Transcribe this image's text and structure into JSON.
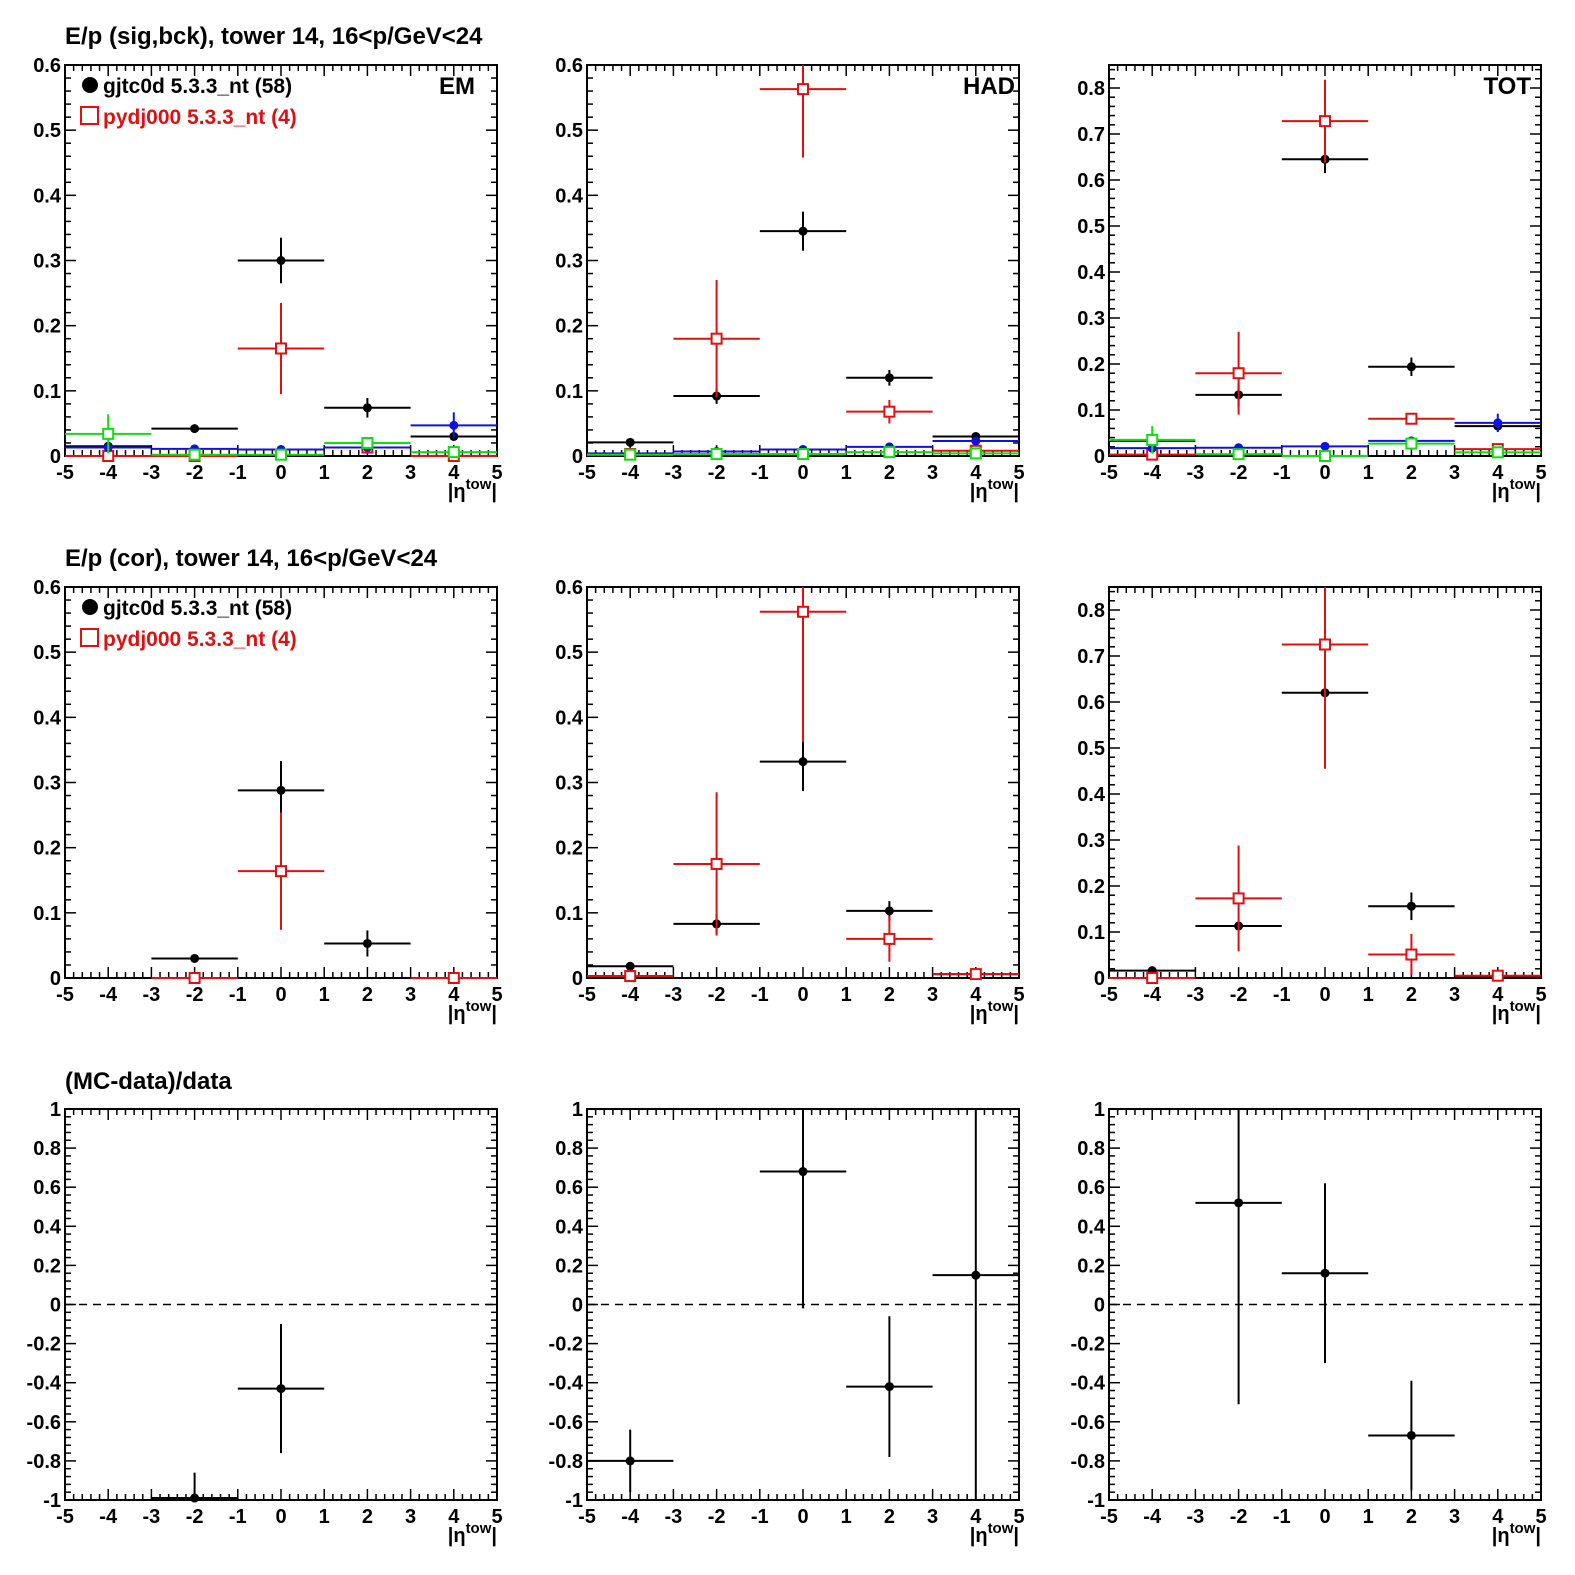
{
  "rows": [
    {
      "title": "E/p (sig,bck), tower 14, 16<p/GeV<24"
    },
    {
      "title": "E/p (cor), tower 14, 16<p/GeV<24"
    },
    {
      "title": "(MC-data)/data"
    }
  ],
  "legend": {
    "data_label": "gjtc0d 5.3.3_nt (58)",
    "mc_label": "pydj000 5.3.3_nt (4)"
  },
  "panel_labels": [
    "EM",
    "HAD",
    "TOT"
  ],
  "x_axis": {
    "label_main": "|η",
    "label_sup": "tow",
    "label_end": "|"
  },
  "colors": {
    "data": "#000000",
    "mc": "#e01010",
    "bck_data": "#1010e0",
    "bck_mc": "#10dd10"
  },
  "chart_data": [
    {
      "type": "scatter",
      "row": 0,
      "col": 0,
      "label": "EM",
      "xlim": [
        -5,
        5
      ],
      "ylim": [
        0,
        0.6
      ],
      "yticks": [
        0,
        0.1,
        0.2,
        0.3,
        0.4,
        0.5,
        0.6
      ],
      "series": [
        {
          "name": "gjtc0d 5.3.3_nt (58)",
          "color": "#000000",
          "marker": "dot",
          "points": [
            [
              -4,
              0.015,
              0
            ],
            [
              -2,
              0.042,
              0
            ],
            [
              0,
              0.3,
              0.035
            ],
            [
              2,
              0.074,
              0.015
            ],
            [
              4,
              0.03,
              0
            ]
          ]
        },
        {
          "name": "pydj000 5.3.3_nt (4)",
          "color": "#e01010",
          "marker": "square",
          "points": [
            [
              -4,
              0.0,
              0
            ],
            [
              -2,
              0.0,
              0
            ],
            [
              0,
              0.165,
              0.07
            ],
            [
              2,
              0.013,
              0
            ],
            [
              4,
              0.0,
              0
            ]
          ]
        },
        {
          "color": "#1010e0",
          "marker": "dot",
          "points": [
            [
              -4,
              0.013,
              0
            ],
            [
              -2,
              0.011,
              0
            ],
            [
              0,
              0.01,
              0
            ],
            [
              2,
              0.013,
              0
            ],
            [
              4,
              0.047,
              0.02
            ]
          ]
        },
        {
          "color": "#10dd10",
          "marker": "square",
          "points": [
            [
              -4,
              0.034,
              0.03
            ],
            [
              -2,
              0.002,
              0
            ],
            [
              0,
              0.002,
              0
            ],
            [
              2,
              0.02,
              0
            ],
            [
              4,
              0.006,
              0
            ]
          ]
        }
      ]
    },
    {
      "type": "scatter",
      "row": 0,
      "col": 1,
      "label": "HAD",
      "xlim": [
        -5,
        5
      ],
      "ylim": [
        0,
        0.6
      ],
      "yticks": [
        0,
        0.1,
        0.2,
        0.3,
        0.4,
        0.5,
        0.6
      ],
      "series": [
        {
          "name": "gjtc0d 5.3.3_nt (58)",
          "color": "#000000",
          "marker": "dot",
          "points": [
            [
              -4,
              0.021,
              0
            ],
            [
              -2,
              0.092,
              0.012
            ],
            [
              0,
              0.345,
              0.03
            ],
            [
              2,
              0.12,
              0.012
            ],
            [
              4,
              0.03,
              0
            ]
          ]
        },
        {
          "name": "pydj000 5.3.3_nt (4)",
          "color": "#e01010",
          "marker": "square",
          "points": [
            [
              -4,
              0.003,
              0
            ],
            [
              -2,
              0.18,
              0.09
            ],
            [
              0,
              0.563,
              0.105
            ],
            [
              2,
              0.068,
              0.018
            ],
            [
              4,
              0.008,
              0
            ]
          ]
        },
        {
          "color": "#1010e0",
          "marker": "dot",
          "points": [
            [
              -4,
              0.004,
              0
            ],
            [
              -2,
              0.007,
              0
            ],
            [
              0,
              0.01,
              0
            ],
            [
              2,
              0.014,
              0
            ],
            [
              4,
              0.023,
              0
            ]
          ]
        },
        {
          "color": "#10dd10",
          "marker": "square",
          "points": [
            [
              -4,
              0.002,
              0
            ],
            [
              -2,
              0.003,
              0
            ],
            [
              0,
              0.003,
              0
            ],
            [
              2,
              0.006,
              0
            ],
            [
              4,
              0.004,
              0
            ]
          ]
        }
      ]
    },
    {
      "type": "scatter",
      "row": 0,
      "col": 2,
      "label": "TOT",
      "xlim": [
        -5,
        5
      ],
      "ylim": [
        0,
        0.85
      ],
      "yticks": [
        0,
        0.1,
        0.2,
        0.3,
        0.4,
        0.5,
        0.6,
        0.7,
        0.8
      ],
      "series": [
        {
          "name": "gjtc0d 5.3.3_nt (58)",
          "color": "#000000",
          "marker": "dot",
          "points": [
            [
              -4,
              0.033,
              0
            ],
            [
              -2,
              0.133,
              0.025
            ],
            [
              0,
              0.645,
              0.03
            ],
            [
              2,
              0.194,
              0.02
            ],
            [
              4,
              0.065,
              0
            ]
          ]
        },
        {
          "name": "pydj000 5.3.3_nt (4)",
          "color": "#e01010",
          "marker": "square",
          "points": [
            [
              -4,
              0.003,
              0
            ],
            [
              -2,
              0.18,
              0.09
            ],
            [
              0,
              0.728,
              0.09
            ],
            [
              2,
              0.081,
              0
            ],
            [
              4,
              0.015,
              0
            ]
          ]
        },
        {
          "color": "#1010e0",
          "marker": "dot",
          "points": [
            [
              -4,
              0.017,
              0
            ],
            [
              -2,
              0.018,
              0
            ],
            [
              0,
              0.021,
              0
            ],
            [
              2,
              0.033,
              0
            ],
            [
              4,
              0.072,
              0.02
            ]
          ]
        },
        {
          "color": "#10dd10",
          "marker": "square",
          "points": [
            [
              -4,
              0.035,
              0.03
            ],
            [
              -2,
              0.004,
              0
            ],
            [
              0,
              0.0,
              0
            ],
            [
              2,
              0.027,
              0
            ],
            [
              4,
              0.008,
              0
            ]
          ]
        }
      ]
    },
    {
      "type": "scatter",
      "row": 1,
      "col": 0,
      "xlim": [
        -5,
        5
      ],
      "ylim": [
        0,
        0.6
      ],
      "yticks": [
        0,
        0.1,
        0.2,
        0.3,
        0.4,
        0.5,
        0.6
      ],
      "series": [
        {
          "name": "gjtc0d 5.3.3_nt (58)",
          "color": "#000000",
          "marker": "dot",
          "points": [
            [
              -2,
              0.03,
              0
            ],
            [
              0,
              0.288,
              0.045
            ],
            [
              2,
              0.053,
              0.02
            ]
          ]
        },
        {
          "name": "pydj000 5.3.3_nt (4)",
          "color": "#e01010",
          "marker": "square",
          "points": [
            [
              -2,
              0.0,
              0
            ],
            [
              0,
              0.164,
              0.09
            ],
            [
              4,
              0.0,
              0
            ]
          ]
        }
      ]
    },
    {
      "type": "scatter",
      "row": 1,
      "col": 1,
      "xlim": [
        -5,
        5
      ],
      "ylim": [
        0,
        0.6
      ],
      "yticks": [
        0,
        0.1,
        0.2,
        0.3,
        0.4,
        0.5,
        0.6
      ],
      "series": [
        {
          "name": "gjtc0d 5.3.3_nt (58)",
          "color": "#000000",
          "marker": "dot",
          "points": [
            [
              -4,
              0.018,
              0
            ],
            [
              -2,
              0.083,
              0.015
            ],
            [
              0,
              0.332,
              0.045
            ],
            [
              2,
              0.103,
              0.015
            ],
            [
              4,
              0.006,
              0
            ]
          ]
        },
        {
          "name": "pydj000 5.3.3_nt (4)",
          "color": "#e01010",
          "marker": "square",
          "points": [
            [
              -4,
              0.003,
              0
            ],
            [
              -2,
              0.175,
              0.11
            ],
            [
              0,
              0.562,
              0.2
            ],
            [
              2,
              0.06,
              0.035
            ],
            [
              4,
              0.006,
              0
            ]
          ]
        }
      ]
    },
    {
      "type": "scatter",
      "row": 1,
      "col": 2,
      "xlim": [
        -5,
        5
      ],
      "ylim": [
        0,
        0.85
      ],
      "yticks": [
        0,
        0.1,
        0.2,
        0.3,
        0.4,
        0.5,
        0.6,
        0.7,
        0.8
      ],
      "series": [
        {
          "name": "gjtc0d 5.3.3_nt (58)",
          "color": "#000000",
          "marker": "dot",
          "points": [
            [
              -4,
              0.016,
              0
            ],
            [
              -2,
              0.113,
              0
            ],
            [
              0,
              0.62,
              0.04
            ],
            [
              2,
              0.156,
              0.03
            ],
            [
              4,
              0.004,
              0
            ]
          ]
        },
        {
          "name": "pydj000 5.3.3_nt (4)",
          "color": "#e01010",
          "marker": "square",
          "points": [
            [
              -4,
              0.0,
              0
            ],
            [
              -2,
              0.173,
              0.115
            ],
            [
              0,
              0.725,
              0.27
            ],
            [
              2,
              0.051,
              0.045
            ],
            [
              4,
              0.005,
              0
            ]
          ]
        }
      ]
    },
    {
      "type": "scatter",
      "row": 2,
      "col": 0,
      "xlim": [
        -5,
        5
      ],
      "ylim": [
        -1,
        1
      ],
      "yticks": [
        -1,
        -0.8,
        -0.6,
        -0.4,
        -0.2,
        0,
        0.2,
        0.4,
        0.6,
        0.8,
        1
      ],
      "dashed_zero": true,
      "series": [
        {
          "color": "#000000",
          "marker": "dot",
          "points": [
            [
              -2,
              -0.99,
              0.13
            ],
            [
              0,
              -0.43,
              0.33
            ]
          ]
        }
      ]
    },
    {
      "type": "scatter",
      "row": 2,
      "col": 1,
      "xlim": [
        -5,
        5
      ],
      "ylim": [
        -1,
        1
      ],
      "yticks": [
        -1,
        -0.8,
        -0.6,
        -0.4,
        -0.2,
        0,
        0.2,
        0.4,
        0.6,
        0.8,
        1
      ],
      "dashed_zero": true,
      "series": [
        {
          "color": "#000000",
          "marker": "dot",
          "points": [
            [
              -4,
              -0.8,
              0.16
            ],
            [
              0,
              0.68,
              0.7
            ],
            [
              2,
              -0.42,
              0.36
            ],
            [
              4,
              0.15,
              1.15
            ]
          ]
        }
      ]
    },
    {
      "type": "scatter",
      "row": 2,
      "col": 2,
      "xlim": [
        -5,
        5
      ],
      "ylim": [
        -1,
        1
      ],
      "yticks": [
        -1,
        -0.8,
        -0.6,
        -0.4,
        -0.2,
        0,
        0.2,
        0.4,
        0.6,
        0.8,
        1
      ],
      "dashed_zero": true,
      "series": [
        {
          "color": "#000000",
          "marker": "dot",
          "points": [
            [
              -2,
              0.52,
              1.03
            ],
            [
              0,
              0.16,
              0.46
            ],
            [
              2,
              -0.67,
              0.28
            ]
          ]
        }
      ]
    }
  ]
}
